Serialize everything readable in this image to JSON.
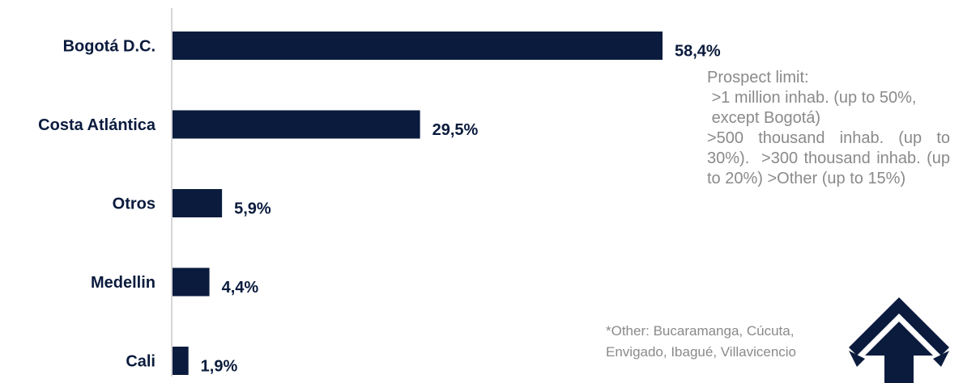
{
  "chart_data": {
    "type": "bar",
    "orientation": "horizontal",
    "categories": [
      "Bogotá D.C.",
      "Costa Atlántica",
      "Otros",
      "Medellin",
      "Cali"
    ],
    "values": [
      58.4,
      29.5,
      5.9,
      4.4,
      1.9
    ],
    "value_labels": [
      "58,4%",
      "29,5%",
      "5,9%",
      "4,4%",
      "1,9%"
    ],
    "unit": "%",
    "xlim": [
      0,
      100
    ],
    "grid": false,
    "bar_color": "#0a1b3d"
  },
  "note": {
    "lines": [
      "Prospect limit:",
      " >1 million inhab. (up to 50%,",
      " except Bogotá)",
      ">500 thousand inhab. (up to 30%).  >300 thousand inhab. (up to 20%) >Other (up to 15%)"
    ]
  },
  "footnote": {
    "line1": "*Other: Bucaramanga, Cúcuta,",
    "line2": "Envigado, Ibagué, Villavicencio"
  },
  "colors": {
    "bar": "#0a1b3d",
    "note_text": "#8a8a8a"
  },
  "logo": {
    "icon": "arrow-up-logo-icon"
  }
}
